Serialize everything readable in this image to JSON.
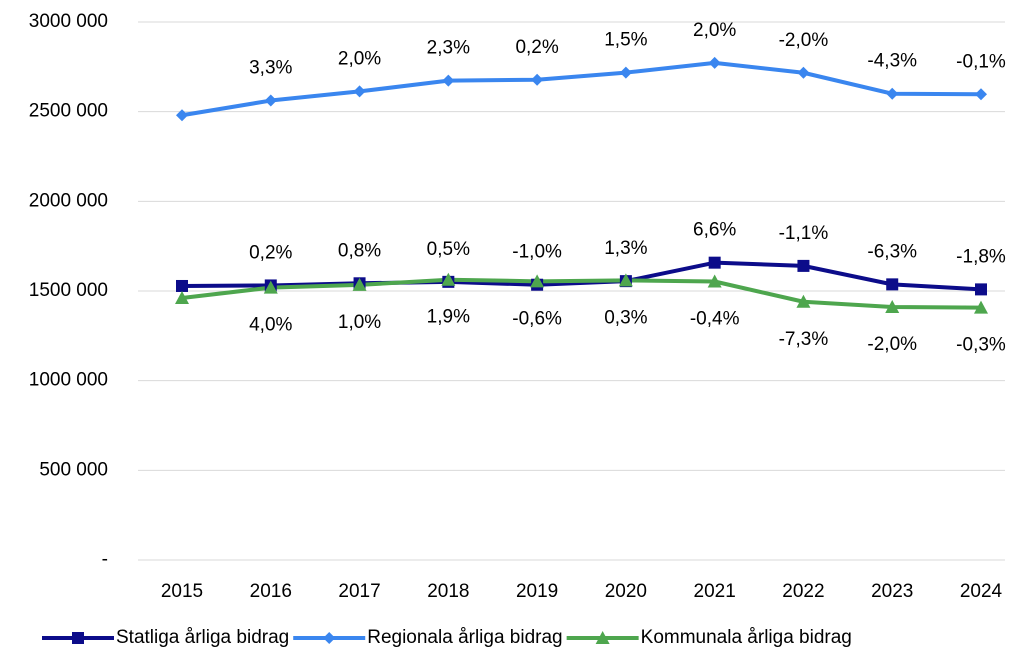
{
  "chart_data": {
    "type": "line",
    "x": [
      "2015",
      "2016",
      "2017",
      "2018",
      "2019",
      "2020",
      "2021",
      "2022",
      "2023",
      "2024"
    ],
    "ylim": [
      0,
      3000000
    ],
    "yticks": [
      {
        "value": 0,
        "label": "-"
      },
      {
        "value": 500000,
        "label": "500 000"
      },
      {
        "value": 1000000,
        "label": "1000 000"
      },
      {
        "value": 1500000,
        "label": "1500 000"
      },
      {
        "value": 2000000,
        "label": "2000 000"
      },
      {
        "value": 2500000,
        "label": "2500 000"
      },
      {
        "value": 3000000,
        "label": "3000 000"
      }
    ],
    "grid": true,
    "legend": "bottom",
    "series": [
      {
        "name": "Statliga årliga bidrag",
        "color": "#0c0c8a",
        "marker": "square",
        "label_position": "above",
        "values": [
          1528000,
          1531000,
          1543000,
          1551000,
          1535000,
          1555000,
          1658000,
          1640000,
          1537000,
          1509000
        ],
        "data_labels": [
          null,
          "0,2%",
          "0,8%",
          "0,5%",
          "-1,0%",
          "1,3%",
          "6,6%",
          "-1,1%",
          "-6,3%",
          "-1,8%"
        ]
      },
      {
        "name": "Regionala årliga bidrag",
        "color": "#3a86ef",
        "marker": "diamond",
        "label_position": "above",
        "values": [
          2480000,
          2562000,
          2613000,
          2673000,
          2678000,
          2718000,
          2772000,
          2717000,
          2600000,
          2597000
        ],
        "data_labels": [
          null,
          "3,3%",
          "2,0%",
          "2,3%",
          "0,2%",
          "1,5%",
          "2,0%",
          "-2,0%",
          "-4,3%",
          "-0,1%"
        ]
      },
      {
        "name": "Kommunala årliga bidrag",
        "color": "#4ea64e",
        "marker": "triangle",
        "label_position": "below",
        "values": [
          1461000,
          1519000,
          1534000,
          1563000,
          1554000,
          1559000,
          1553000,
          1440000,
          1411000,
          1407000
        ],
        "data_labels": [
          null,
          "4,0%",
          "1,0%",
          "1,9%",
          "-0,6%",
          "0,3%",
          "-0,4%",
          "-7,3%",
          "-2,0%",
          "-0,3%"
        ]
      }
    ]
  }
}
